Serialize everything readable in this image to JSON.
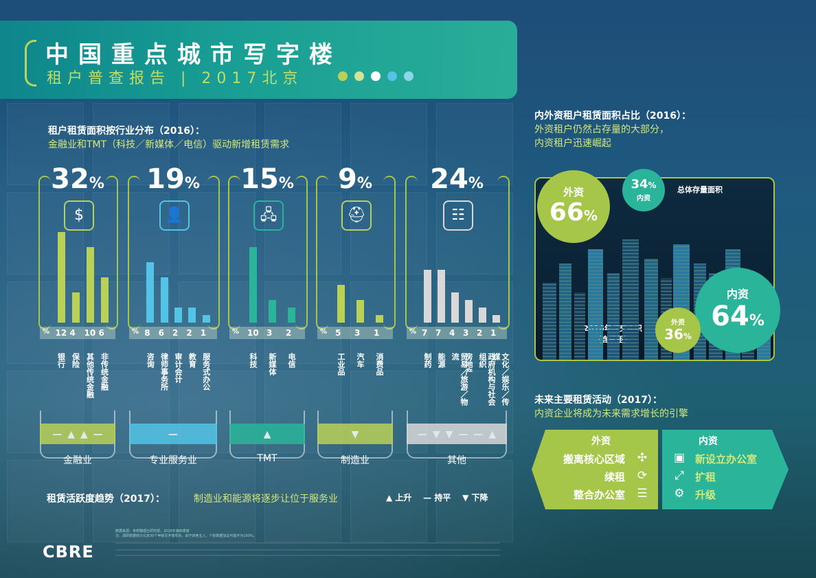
{
  "header": {
    "title": "中国重点城市写字楼",
    "subtitle": "租户普查报告 | 2017北京",
    "dot_colors": [
      "#b9d157",
      "#cfe39b",
      "#ffffff",
      "#54c4e6",
      "#8dd6e6"
    ]
  },
  "industry": {
    "heading": "租户租赁面积按行业分布（2016）：",
    "subheading": "金融业和TMT（科技／新媒体／电信）驱动新增租赁需求",
    "panels": [
      {
        "pct": "32",
        "icon": "money-icon",
        "color": "#b9d157",
        "pct_sign": "%",
        "values": [
          12,
          4,
          10,
          6
        ],
        "value_labels": [
          "12",
          "4",
          "10",
          "6"
        ],
        "labels": [
          "银行",
          "保险",
          "其他传统金融",
          "非传统金融"
        ],
        "trend": [
          "—",
          "▲",
          "▲",
          "—"
        ],
        "category": "金融业"
      },
      {
        "pct": "19",
        "icon": "person-icon",
        "color": "#54c4e6",
        "pct_sign": "%",
        "values": [
          8,
          6,
          2,
          2,
          1
        ],
        "value_labels": [
          "8",
          "6",
          "2",
          "2",
          "1"
        ],
        "labels": [
          "咨询",
          "律师事务所",
          "审计会计",
          "教育",
          "服务式办公"
        ],
        "trend": [
          "—"
        ],
        "category": "专业服务业"
      },
      {
        "pct": "15",
        "icon": "network-icon",
        "color": "#2ab59a",
        "pct_sign": "%",
        "values": [
          10,
          3,
          2
        ],
        "value_labels": [
          "10",
          "3",
          "2"
        ],
        "labels": [
          "科技",
          "新媒体",
          "电信"
        ],
        "trend": [
          "▲"
        ],
        "category": "TMT"
      },
      {
        "pct": "9",
        "icon": "helmet-icon",
        "color": "#b9d157",
        "pct_sign": "%",
        "values": [
          5,
          3,
          1
        ],
        "value_labels": [
          "5",
          "3",
          "1"
        ],
        "labels": [
          "工业品",
          "汽车",
          "消费品"
        ],
        "trend": [
          "▼"
        ],
        "category": "制造业"
      },
      {
        "pct": "24",
        "icon": "list-icon",
        "color": "#d8d8d8",
        "pct_sign": "%",
        "values": [
          7,
          7,
          4,
          3,
          2,
          1
        ],
        "value_labels": [
          "7",
          "7",
          "4",
          "3",
          "2",
          "1"
        ],
        "labels": [
          "制药",
          "能源",
          "贸易／旅游／物流",
          "房地产",
          "政府机构与社会组织",
          "文化／娱乐／传媒"
        ],
        "trend": [
          "—",
          "▼",
          "▼",
          "—",
          "—",
          "▲"
        ],
        "category": "其他"
      }
    ],
    "pct_unit": "%"
  },
  "trend_section": {
    "heading": "租赁活跃度趋势（2017）：",
    "text": "制造业和能源将逐步让位于服务业",
    "legend_up": "上升",
    "legend_flat": "持平",
    "legend_down": "下降"
  },
  "domestic_foreign": {
    "heading": "内外资租户租赁面积占比（2016）：",
    "line1": "外资租户仍然占存量的大部分，",
    "line2": "内资租户迅速崛起",
    "stock_label": "总体存量面积",
    "foreign_stock_label": "外资",
    "foreign_stock_value": "66",
    "domestic_stock_label": "内资",
    "domestic_stock_value": "34",
    "deal_label_line1": "2016年成交面积",
    "deal_label_line2": "（含续租）",
    "domestic_deal_label": "内资",
    "domestic_deal_value": "64",
    "foreign_deal_label": "外资",
    "foreign_deal_value": "36",
    "pct": "%"
  },
  "future": {
    "heading": "未来主要租赁活动（2017）：",
    "subheading": "内资企业将成为未来需求增长的引擎",
    "foreign_title": "外资",
    "foreign_items": [
      "搬离核心区域",
      "续租",
      "整合办公室"
    ],
    "domestic_title": "内资",
    "domestic_items": [
      "新设立办公室",
      "扩租",
      "升级"
    ]
  },
  "footer": {
    "logo": "CBRE",
    "source": "数据来源：世邦魏理仕研究部，2016年第四季度",
    "note": "注：调研数据统计北京30个甲级写字楼项目，由于四舍五入，个别数据加总可能不为100%。"
  }
}
